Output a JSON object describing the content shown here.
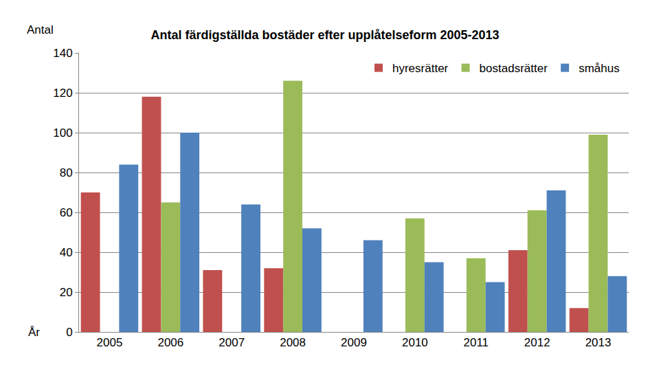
{
  "chart_data": {
    "type": "bar",
    "title": "Antal färdigställda bostäder efter upplåtelseform 2005-2013",
    "y_label": "Antal",
    "x_label": "År",
    "categories": [
      "2005",
      "2006",
      "2007",
      "2008",
      "2009",
      "2010",
      "2011",
      "2012",
      "2013"
    ],
    "series": [
      {
        "name": "hyresrätter",
        "color": "#c0504d",
        "values": [
          70,
          118,
          31,
          32,
          0,
          0,
          0,
          41,
          12
        ]
      },
      {
        "name": "bostadsrätter",
        "color": "#9bbb59",
        "values": [
          0,
          65,
          0,
          126,
          0,
          57,
          37,
          61,
          99
        ]
      },
      {
        "name": "småhus",
        "color": "#4f81bd",
        "values": [
          84,
          100,
          64,
          52,
          46,
          35,
          25,
          71,
          28
        ]
      }
    ],
    "ylim": [
      0,
      140
    ],
    "yticks": [
      0,
      20,
      40,
      60,
      80,
      100,
      120,
      140
    ],
    "grid": true,
    "legend": "top-right"
  }
}
